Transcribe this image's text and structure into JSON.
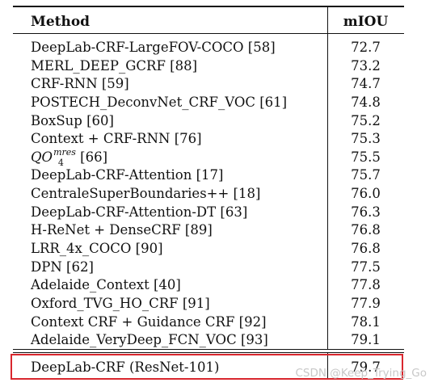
{
  "table": {
    "header": {
      "method": "Method",
      "miou": "mIOU"
    },
    "rows": [
      {
        "method": "DeepLab-CRF-LargeFOV-COCO [58]",
        "miou": "72.7"
      },
      {
        "method": "MERL_DEEP_GCRF [88]",
        "miou": "73.2"
      },
      {
        "method": "CRF-RNN [59]",
        "miou": "74.7"
      },
      {
        "method": "POSTECH_DeconvNet_CRF_VOC [61]",
        "miou": "74.8"
      },
      {
        "method": "BoxSup [60]",
        "miou": "75.2"
      },
      {
        "method": "Context + CRF-RNN [76]",
        "miou": "75.3"
      },
      {
        "method_base": "QO",
        "method_sup": "mres",
        "method_sub": "4",
        "method_ref": " [66]",
        "miou": "75.5"
      },
      {
        "method": "DeepLab-CRF-Attention [17]",
        "miou": "75.7"
      },
      {
        "method": "CentraleSuperBoundaries++ [18]",
        "miou": "76.0"
      },
      {
        "method": "DeepLab-CRF-Attention-DT [63]",
        "miou": "76.3"
      },
      {
        "method": "H-ReNet + DenseCRF [89]",
        "miou": "76.8"
      },
      {
        "method": "LRR_4x_COCO [90]",
        "miou": "76.8"
      },
      {
        "method": "DPN [62]",
        "miou": "77.5"
      },
      {
        "method": "Adelaide_Context [40]",
        "miou": "77.8"
      },
      {
        "method": "Oxford_TVG_HO_CRF [91]",
        "miou": "77.9"
      },
      {
        "method": "Context CRF + Guidance CRF [92]",
        "miou": "78.1"
      },
      {
        "method": "Adelaide_VeryDeep_FCN_VOC [93]",
        "miou": "79.1"
      }
    ],
    "last_row": {
      "method": "DeepLab-CRF (ResNet-101)",
      "miou": "79.7"
    }
  },
  "highlight_color": "#d9272e",
  "watermark": "CSDN @Keep_Trying_Go"
}
